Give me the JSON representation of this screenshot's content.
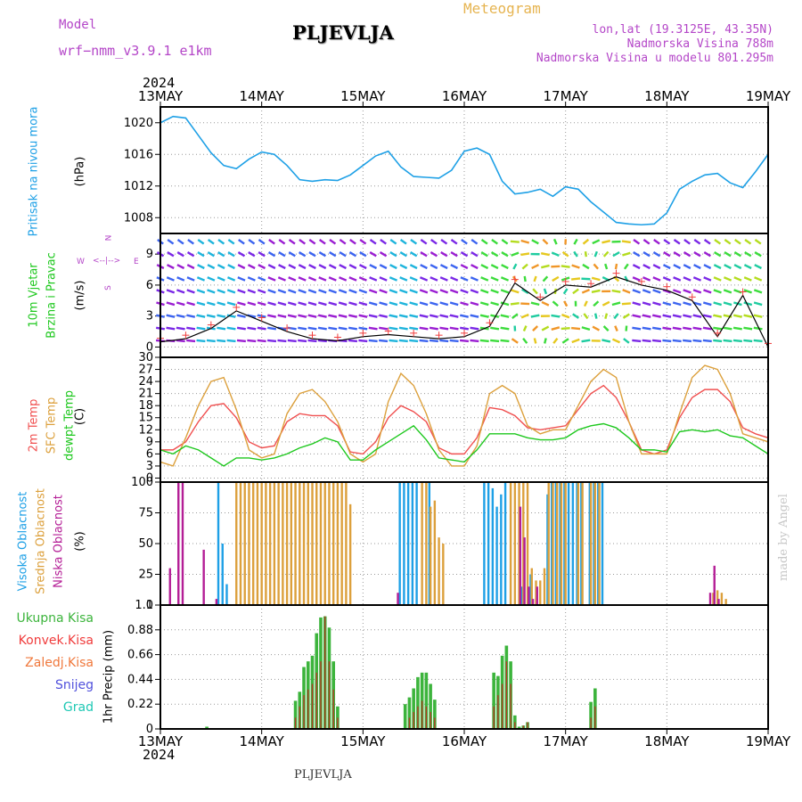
{
  "header": {
    "model_label": "Model",
    "model_name": "wrf−nmm_v3.9.1  e1km",
    "station": "PLJEVLJA",
    "meteogram": "Meteogram",
    "lonlat": "lon,lat (19.3125E, 43.35N)",
    "altitude": "Nadmorska Visina 788m",
    "model_altitude": "Nadmorska Visina u modelu 801.295m",
    "year": "2024",
    "footer_station": "PLJEVLJA",
    "credit": "made by Angel"
  },
  "time_axis": {
    "labels": [
      "13MAY",
      "14MAY",
      "15MAY",
      "16MAY",
      "17MAY",
      "18MAY",
      "19MAY"
    ],
    "hours_total": 144
  },
  "colors": {
    "pressure": "#1ea0e6",
    "temp2m": "#f05050",
    "sfc": "#dca03c",
    "dewpt": "#1ec81e",
    "high_cloud": "#1ea0e6",
    "mid_cloud": "#dca03c",
    "low_cloud": "#b41e96",
    "ukupna": "#3cb43c",
    "konvek": "#f03c3c",
    "zaledj": "#f0783c",
    "snijeg": "#5050dc",
    "grad": "#1ec8b4"
  },
  "panels": {
    "pressure": {
      "label1": "Pritisak na nivou mora",
      "label2": "(hPa)",
      "ticks": [
        "1008",
        "1012",
        "1016",
        "1020"
      ]
    },
    "wind": {
      "label1": "10m Vjetar",
      "label2": "Brzina i Pravac",
      "label3": "(m/s)",
      "ticks": [
        "0",
        "3",
        "6",
        "9"
      ],
      "compass": {
        "n": "N",
        "s": "S",
        "e": "E",
        "w": "W"
      }
    },
    "temp": {
      "label1": "2m Temp",
      "label2": "SFC Temp",
      "label3": "dewpt Temp",
      "label4": "(C)",
      "ticks": [
        "0",
        "3",
        "6",
        "9",
        "12",
        "15",
        "18",
        "21",
        "24",
        "27",
        "30"
      ]
    },
    "cloud": {
      "label1": "Visoka Oblacnost",
      "label2": "Srednja Oblacnost",
      "label3": "Niska Oblacnost",
      "label4": "(%)",
      "ticks": [
        "0",
        "25",
        "50",
        "75",
        "100"
      ]
    },
    "precip": {
      "label1": "1hr Precip (mm)",
      "ticks": [
        "0",
        "0.22",
        "0.44",
        "0.66",
        "0.88",
        "1.1"
      ],
      "legend": [
        "Ukupna Kisa",
        "Konvek.Kisa",
        "Zaledj.Kisa",
        "Snijeg",
        "Grad"
      ]
    }
  },
  "chart_data": [
    {
      "type": "line",
      "ylabel": "Pritisak na nivou mora (hPa)",
      "ylim": [
        1006,
        1022
      ],
      "x_hours": [
        0,
        3,
        6,
        9,
        12,
        15,
        18,
        21,
        24,
        27,
        30,
        33,
        36,
        39,
        42,
        45,
        48,
        51,
        54,
        57,
        60,
        63,
        66,
        69,
        72,
        75,
        78,
        81,
        84,
        87,
        90,
        93,
        96,
        99,
        102,
        105,
        108,
        111,
        114,
        117,
        120,
        123,
        126,
        129,
        132,
        135,
        138,
        141,
        144
      ],
      "series": [
        {
          "name": "",
          "values": [
            1020,
            1020.8,
            1020.6,
            1018.4,
            1016.2,
            1014.6,
            1014.2,
            1015.4,
            1016.3,
            1016,
            1014.6,
            1012.8,
            1012.6,
            1012.8,
            1012.7,
            1013.4,
            1014.6,
            1015.8,
            1016.4,
            1014.4,
            1013.2,
            1013.1,
            1013,
            1014,
            1016.4,
            1016.8,
            1016,
            1012.6,
            1011,
            1011.2,
            1011.6,
            1010.7,
            1011.9,
            1011.6,
            1010,
            1008.7,
            1007.4,
            1007.2,
            1007.1,
            1007.2,
            1008.6,
            1011.6,
            1012.6,
            1013.4,
            1013.6,
            1012.4,
            1011.8,
            1013.8,
            1016
          ]
        }
      ]
    },
    {
      "type": "line",
      "ylabel": "10m Vjetar Brzina i Pravac (m/s)",
      "ylim": [
        -1,
        11
      ],
      "x_hours": [
        0,
        6,
        12,
        18,
        24,
        30,
        36,
        42,
        48,
        54,
        60,
        66,
        72,
        78,
        84,
        90,
        96,
        102,
        108,
        114,
        120,
        126,
        132,
        138,
        144
      ],
      "series": [
        {
          "name": "",
          "values": [
            0.5,
            0.8,
            1.8,
            3.5,
            2.5,
            1.5,
            0.8,
            0.6,
            1,
            1.2,
            1,
            0.8,
            1,
            2,
            6.2,
            4.5,
            6,
            5.8,
            6.8,
            6,
            5.5,
            4.5,
            1,
            5,
            0
          ]
        }
      ]
    },
    {
      "type": "line",
      "ylabel": "Temp (C)",
      "ylim": [
        -1,
        30
      ],
      "x_hours": [
        0,
        3,
        6,
        9,
        12,
        15,
        18,
        21,
        24,
        27,
        30,
        33,
        36,
        39,
        42,
        45,
        48,
        51,
        54,
        57,
        60,
        63,
        66,
        69,
        72,
        75,
        78,
        81,
        84,
        87,
        90,
        93,
        96,
        99,
        102,
        105,
        108,
        111,
        114,
        117,
        120,
        123,
        126,
        129,
        132,
        135,
        138,
        141,
        144
      ],
      "series": [
        {
          "name": "2m Temp",
          "values": [
            7,
            7,
            9,
            14,
            18,
            18.5,
            15,
            9,
            7.5,
            8,
            14,
            16,
            15.5,
            15.5,
            13,
            6.5,
            6,
            9,
            15,
            18,
            16.5,
            14,
            7.5,
            6,
            6,
            10,
            17.5,
            17,
            15.5,
            12.5,
            12,
            12.5,
            13,
            17,
            21,
            23,
            20,
            14,
            7,
            6,
            7,
            15,
            20,
            22,
            22,
            19,
            12.5,
            11,
            10
          ]
        },
        {
          "name": "SFC Temp",
          "values": [
            4,
            3,
            10,
            18,
            24,
            25,
            17,
            7,
            5,
            6,
            16,
            21,
            22,
            19,
            14,
            6,
            4,
            6,
            19,
            26,
            23,
            16,
            7,
            3,
            3,
            8,
            21,
            23,
            21,
            13,
            11,
            12,
            12,
            18,
            24,
            27,
            25,
            14,
            6,
            6,
            6,
            16,
            25,
            28,
            27,
            21,
            11,
            10,
            9
          ]
        },
        {
          "name": "dewpt Temp",
          "values": [
            7,
            6,
            8,
            7,
            5,
            3,
            5,
            5,
            4.5,
            5,
            6,
            7.5,
            8.5,
            10,
            9,
            4.5,
            4.5,
            7,
            9,
            11,
            13,
            9.5,
            5,
            4.5,
            4,
            7,
            11,
            11,
            11,
            10,
            9.5,
            9.5,
            10,
            12,
            13,
            13.5,
            12.5,
            10,
            7,
            7,
            6.5,
            11.5,
            12,
            11.5,
            12,
            10.5,
            10,
            8,
            6
          ]
        }
      ]
    },
    {
      "type": "bar",
      "ylabel": "Oblacnost (%)",
      "ylim": [
        0,
        100
      ],
      "x_hours": [
        2,
        4,
        5,
        10,
        13,
        14,
        15,
        16,
        18,
        19,
        20,
        21,
        22,
        23,
        24,
        25,
        26,
        27,
        28,
        29,
        30,
        31,
        32,
        33,
        34,
        35,
        36,
        37,
        38,
        39,
        40,
        41,
        42,
        43,
        44,
        45,
        56,
        57,
        58,
        59,
        60,
        61,
        62,
        63,
        64,
        65,
        66,
        67,
        77,
        78,
        79,
        80,
        81,
        82,
        83,
        84,
        85,
        86,
        87,
        88,
        89,
        90,
        91,
        92,
        93,
        94,
        95,
        96,
        97,
        98,
        99,
        100,
        101,
        102,
        103,
        104,
        105,
        130,
        131,
        132,
        133,
        134
      ],
      "series": [
        {
          "name": "Visoka Oblacnost",
          "values": [
            0,
            0,
            0,
            0,
            0,
            100,
            50,
            17,
            0,
            0,
            0,
            0,
            0,
            0,
            0,
            0,
            0,
            0,
            0,
            0,
            0,
            0,
            0,
            0,
            0,
            0,
            0,
            0,
            0,
            0,
            0,
            0,
            0,
            0,
            0,
            0,
            0,
            100,
            100,
            100,
            100,
            100,
            0,
            0,
            100,
            0,
            0,
            0,
            100,
            100,
            95,
            80,
            90,
            100,
            0,
            0,
            0,
            15,
            0,
            25,
            0,
            0,
            0,
            90,
            100,
            100,
            100,
            100,
            100,
            100,
            100,
            100,
            0,
            100,
            100,
            100,
            100,
            0,
            0,
            0,
            0,
            0
          ]
        },
        {
          "name": "Srednja Oblacnost",
          "values": [
            0,
            0,
            0,
            0,
            0,
            0,
            0,
            0,
            100,
            100,
            100,
            100,
            100,
            100,
            100,
            100,
            100,
            100,
            100,
            100,
            100,
            100,
            100,
            100,
            100,
            100,
            100,
            100,
            100,
            100,
            100,
            100,
            100,
            100,
            100,
            82,
            0,
            0,
            0,
            0,
            0,
            0,
            100,
            100,
            80,
            85,
            55,
            50,
            0,
            0,
            0,
            0,
            0,
            0,
            100,
            100,
            100,
            100,
            100,
            30,
            20,
            20,
            30,
            100,
            100,
            100,
            100,
            100,
            0,
            0,
            100,
            100,
            0,
            100,
            100,
            100,
            0,
            0,
            10,
            12,
            10,
            5
          ]
        },
        {
          "name": "Niska Oblacnost",
          "values": [
            30,
            100,
            100,
            45,
            5,
            0,
            0,
            0,
            0,
            0,
            0,
            0,
            0,
            0,
            0,
            0,
            0,
            0,
            0,
            0,
            0,
            0,
            0,
            0,
            0,
            0,
            0,
            0,
            0,
            0,
            0,
            0,
            0,
            0,
            0,
            0,
            10,
            0,
            0,
            0,
            0,
            0,
            0,
            0,
            0,
            0,
            0,
            0,
            0,
            0,
            0,
            0,
            0,
            0,
            0,
            0,
            80,
            55,
            15,
            5,
            15,
            0,
            0,
            0,
            0,
            0,
            0,
            0,
            0,
            0,
            0,
            0,
            0,
            0,
            0,
            0,
            0,
            10,
            32,
            5,
            0,
            0
          ]
        }
      ]
    },
    {
      "type": "bar",
      "ylabel": "1hr Precip (mm)",
      "ylim": [
        0,
        1.1
      ],
      "x_hours": [
        11,
        32,
        33,
        34,
        35,
        36,
        37,
        38,
        39,
        40,
        41,
        42,
        58,
        59,
        60,
        61,
        62,
        63,
        64,
        65,
        79,
        80,
        81,
        82,
        83,
        84,
        85,
        86,
        87,
        102,
        103
      ],
      "series": [
        {
          "name": "Ukupna Kisa",
          "values": [
            0.02,
            0.25,
            0.33,
            0.55,
            0.6,
            0.65,
            0.85,
            0.99,
            1.0,
            0.9,
            0.6,
            0.2,
            0.22,
            0.28,
            0.36,
            0.46,
            0.5,
            0.5,
            0.4,
            0.26,
            0.5,
            0.47,
            0.65,
            0.74,
            0.6,
            0.12,
            0.02,
            0.03,
            0.06,
            0.24,
            0.36
          ]
        },
        {
          "name": "Konvek.Kisa",
          "values": [
            0,
            0.1,
            0.2,
            0.3,
            0.35,
            0.4,
            0.5,
            0.6,
            1.0,
            0.6,
            0.35,
            0.1,
            0,
            0.1,
            0.15,
            0.2,
            0.25,
            0.2,
            0.15,
            0.1,
            0.2,
            0.3,
            0.4,
            0.6,
            0.4,
            0.06,
            0,
            0.03,
            0.06,
            0.1,
            0.2
          ]
        }
      ]
    }
  ]
}
